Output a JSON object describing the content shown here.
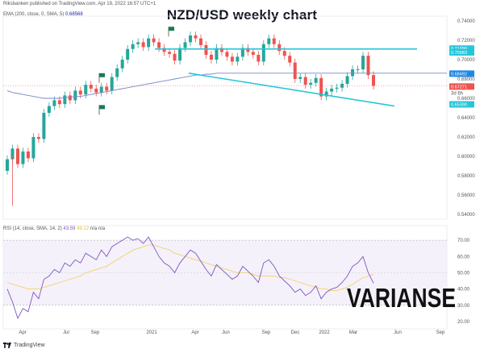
{
  "header": {
    "publisher": "Riksbanken published on TradingView.com, Apr 19, 2022 16:57 UTC+1",
    "title": "NZD/USD weekly chart"
  },
  "ema_label": {
    "text": "EMA (200, close, 0, SMA, 5)",
    "value": "0.68568"
  },
  "rsi_label": {
    "text": "RSI (14, close, SMA, 14, 2)",
    "value1": "43.59",
    "value2": "49.12",
    "extra": "n/a n/a"
  },
  "footer": {
    "logo_text": "TradingView"
  },
  "watermark": {
    "text": "VARIANSE"
  },
  "colors": {
    "up": "#26a69a",
    "down": "#ef5350",
    "trend": "#26c6da",
    "ema": "#7986cb",
    "rsi": "#7e57c2",
    "rsi_ma": "#f2d268"
  },
  "chart_data": [
    {
      "type": "line",
      "title": "NZD/USD weekly chart",
      "price_axis_ticks": [
        "0.72000",
        "0.70000",
        "0.68000",
        "0.66000",
        "0.64000",
        "0.62000",
        "0.60000",
        "0.58000",
        "0.56000",
        "0.54000"
      ],
      "price_axis_top": "0.74000",
      "ylim": [
        0.535,
        0.745
      ],
      "x_axis_ticks": [
        "Apr",
        "Jul",
        "Sep",
        "2021",
        "Apr",
        "Jun",
        "Sep",
        "Dec",
        "2022",
        "Mar",
        "Jun",
        "Sep"
      ],
      "price_labels": [
        {
          "value": "0.71090",
          "color": "#26c6da"
        },
        {
          "value": "0.70983",
          "color": "#26c6da"
        },
        {
          "value": "0.68492",
          "color": "#1e88e5"
        },
        {
          "value": "0.67271",
          "color": "#ef5350"
        },
        {
          "value": "0.65390",
          "color": "#26c6da"
        }
      ],
      "countdown": "3d 6h",
      "series": [
        {
          "name": "NZD/USD",
          "close": [
            0.597,
            0.608,
            0.592,
            0.605,
            0.598,
            0.62,
            0.618,
            0.645,
            0.652,
            0.658,
            0.654,
            0.663,
            0.658,
            0.668,
            0.664,
            0.674,
            0.67,
            0.666,
            0.672,
            0.668,
            0.682,
            0.691,
            0.7,
            0.711,
            0.716,
            0.718,
            0.713,
            0.722,
            0.718,
            0.712,
            0.708,
            0.706,
            0.699,
            0.712,
            0.718,
            0.725,
            0.722,
            0.715,
            0.705,
            0.7,
            0.712,
            0.708,
            0.703,
            0.698,
            0.703,
            0.712,
            0.708,
            0.705,
            0.698,
            0.716,
            0.722,
            0.716,
            0.709,
            0.704,
            0.697,
            0.68,
            0.682,
            0.674,
            0.676,
            0.681,
            0.662,
            0.667,
            0.67,
            0.671,
            0.675,
            0.683,
            0.69,
            0.69,
            0.704,
            0.684,
            0.673
          ],
          "ema200": [
            0.668,
            0.666,
            0.665,
            0.664,
            0.663,
            0.662,
            0.661,
            0.66,
            0.66,
            0.66,
            0.66,
            0.661,
            0.661,
            0.662,
            0.662,
            0.663,
            0.664,
            0.665,
            0.666,
            0.667,
            0.668,
            0.669,
            0.67,
            0.671,
            0.672,
            0.673,
            0.674,
            0.675,
            0.676,
            0.677,
            0.678,
            0.679,
            0.68,
            0.681,
            0.682,
            0.683,
            0.684,
            0.684,
            0.685,
            0.685,
            0.686,
            0.686,
            0.686,
            0.686,
            0.686,
            0.686,
            0.686,
            0.686,
            0.686,
            0.686,
            0.686,
            0.686,
            0.686,
            0.686,
            0.686,
            0.686,
            0.686,
            0.686,
            0.686,
            0.686,
            0.686,
            0.686,
            0.686,
            0.686,
            0.686,
            0.686,
            0.686,
            0.686,
            0.686,
            0.686,
            0.686
          ]
        }
      ],
      "trendlines": [
        {
          "name": "resistance",
          "from": [
            0.711,
            0.711
          ],
          "kind": "horizontal"
        },
        {
          "name": "falling support",
          "kind": "diagonal"
        }
      ]
    },
    {
      "type": "line",
      "title": "RSI (14, close, SMA, 14, 2)",
      "ylim": [
        17,
        75
      ],
      "ticks": [
        "70.00",
        "60.00",
        "50.00",
        "40.00",
        "30.00",
        "20.00"
      ],
      "bands": [
        30,
        70
      ],
      "series": [
        {
          "name": "RSI",
          "values": [
            40,
            32,
            22,
            28,
            26,
            38,
            34,
            46,
            48,
            52,
            50,
            56,
            54,
            58,
            56,
            62,
            60,
            58,
            64,
            60,
            66,
            68,
            70,
            72,
            70,
            71,
            68,
            72,
            66,
            60,
            56,
            54,
            50,
            56,
            60,
            64,
            62,
            57,
            52,
            48,
            55,
            52,
            49,
            46,
            48,
            54,
            51,
            48,
            44,
            56,
            58,
            54,
            48,
            45,
            42,
            38,
            40,
            36,
            38,
            42,
            34,
            38,
            40,
            41,
            44,
            48,
            54,
            56,
            60,
            50,
            43.59
          ]
        },
        {
          "name": "RSI MA",
          "values": [
            44,
            43,
            42,
            41,
            40,
            40,
            40,
            41,
            42,
            43,
            44,
            45,
            46,
            47,
            48,
            50,
            51,
            52,
            53,
            54,
            56,
            58,
            60,
            62,
            64,
            65,
            66,
            67,
            67,
            66,
            65,
            64,
            62,
            61,
            60,
            59,
            58,
            57,
            56,
            55,
            54,
            53,
            52,
            51,
            50,
            50,
            50,
            49,
            48,
            48,
            48,
            48,
            47,
            47,
            46,
            45,
            44,
            43,
            42,
            41,
            40,
            40,
            39,
            39,
            40,
            41,
            43,
            45,
            47,
            48,
            49.12
          ]
        }
      ]
    }
  ]
}
